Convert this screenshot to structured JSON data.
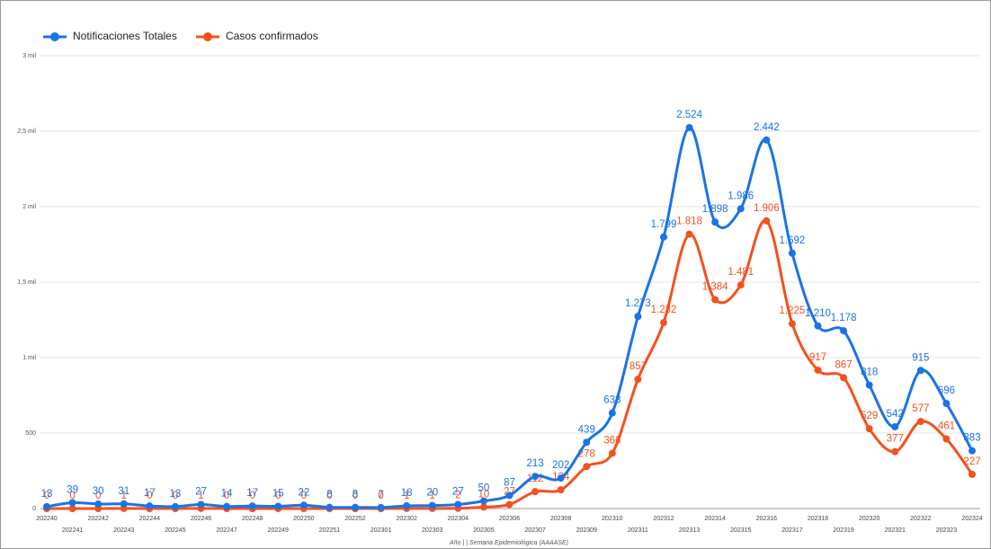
{
  "chart_data": {
    "type": "line",
    "x_label": "Año | | Semana Epidemiológica (AAAASE)",
    "categories": [
      "202240",
      "202241",
      "202242",
      "202243",
      "202244",
      "202245",
      "202246",
      "202247",
      "202248",
      "202249",
      "202250",
      "202251",
      "202252",
      "202301",
      "202302",
      "202303",
      "202304",
      "202305",
      "202306",
      "202307",
      "202308",
      "202309",
      "202310",
      "202311",
      "202312",
      "202313",
      "202314",
      "202315",
      "202316",
      "202317",
      "202318",
      "202319",
      "202320",
      "202321",
      "202322",
      "202323",
      "202324"
    ],
    "series": [
      {
        "name": "Notificaciones Totales",
        "color": "#1a73e8",
        "values": [
          13,
          39,
          30,
          31,
          17,
          13,
          27,
          14,
          17,
          15,
          22,
          8,
          8,
          7,
          18,
          20,
          27,
          50,
          87,
          213,
          202,
          439,
          633,
          1273,
          1799,
          2524,
          1898,
          1986,
          2442,
          1692,
          1210,
          1178,
          818,
          542,
          915,
          696,
          383
        ],
        "value_labels": [
          "13",
          "39",
          "30",
          "31",
          "17",
          "13",
          "27",
          "14",
          "17",
          "15",
          "22",
          "8",
          "8",
          "7",
          "18",
          "20",
          "27",
          "50",
          "87",
          "213",
          "202",
          "439",
          "633",
          "1.273",
          "1.799",
          "2.524",
          "1.898",
          "1.986",
          "2.442",
          "1.692",
          "1.210",
          "1.178",
          "818",
          "542",
          "915",
          "696",
          "383"
        ]
      },
      {
        "name": "Casos confirmados",
        "color": "#f4511e",
        "values": [
          0,
          0,
          0,
          1,
          0,
          0,
          1,
          0,
          0,
          0,
          0,
          0,
          0,
          0,
          1,
          1,
          2,
          10,
          27,
          112,
          124,
          278,
          366,
          857,
          1232,
          1818,
          1384,
          1481,
          1906,
          1225,
          917,
          867,
          529,
          377,
          577,
          461,
          227
        ],
        "value_labels": [
          "0",
          "0",
          "0",
          "1",
          "0",
          "0",
          "1",
          "0",
          "0",
          "0",
          "0",
          "0",
          "0",
          "0",
          "1",
          "1",
          "2",
          "10",
          "27",
          "112",
          "124",
          "278",
          "366",
          "857",
          "1.232",
          "1.818",
          "1.384",
          "1.481",
          "1.906",
          "1.225",
          "917",
          "867",
          "529",
          "377",
          "577",
          "461",
          "227"
        ]
      }
    ],
    "ylim": [
      0,
      3000
    ],
    "yticks": [
      0,
      500,
      {
        "value": 1000,
        "label": "1 mil"
      },
      {
        "value": 1500,
        "label": "1,5 mil"
      },
      {
        "value": 2000,
        "label": "2 mil"
      },
      {
        "value": 2500,
        "label": "2,5 mil"
      },
      {
        "value": 3000,
        "label": "3 mil"
      }
    ],
    "grid": true,
    "legend": "top-left"
  }
}
